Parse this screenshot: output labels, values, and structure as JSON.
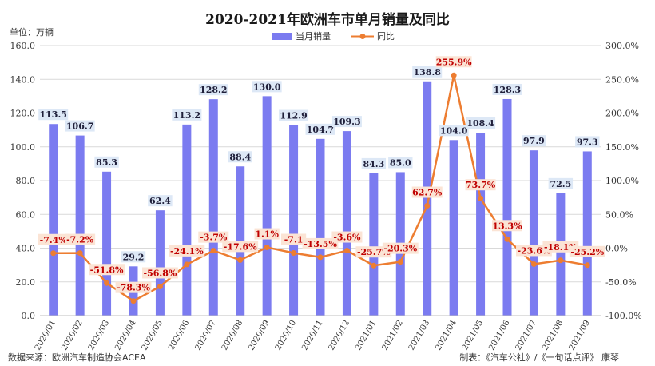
{
  "chart_data": {
    "type": "bar",
    "title": "2020-2021年欧洲车市单月销量及同比",
    "unit_label": "单位：万辆",
    "categories": [
      "2020/01",
      "2020/02",
      "2020/03",
      "2020/04",
      "2020/05",
      "2020/06",
      "2020/07",
      "2020/08",
      "2020/09",
      "2020/10",
      "2020/11",
      "2020/12",
      "2021/01",
      "2021/02",
      "2021/03",
      "2021/04",
      "2021/05",
      "2021/06",
      "2021/07",
      "2021/08",
      "2021/09"
    ],
    "series": [
      {
        "name": "当月销量",
        "type": "bar",
        "axis": "left",
        "color": "#7b7bf0",
        "values": [
          113.5,
          106.7,
          85.3,
          29.2,
          62.4,
          113.2,
          128.2,
          88.4,
          130.0,
          112.9,
          104.7,
          109.3,
          84.3,
          85.0,
          138.8,
          104.0,
          108.4,
          128.3,
          97.9,
          72.5,
          97.3
        ],
        "labels": [
          "113.5",
          "106.7",
          "85.3",
          "29.2",
          "62.4",
          "113.2",
          "128.2",
          "88.4",
          "130.0",
          "112.9",
          "104.7",
          "109.3",
          "84.3",
          "85.0",
          "138.8",
          "104.0",
          "108.4",
          "128.3",
          "97.9",
          "72.5",
          "97.3"
        ]
      },
      {
        "name": "同比",
        "type": "line",
        "axis": "right",
        "color": "#ed7d31",
        "values": [
          -7.4,
          -7.2,
          -51.8,
          -78.3,
          -56.8,
          -24.1,
          -3.7,
          -17.6,
          1.1,
          -7.1,
          -13.5,
          -3.6,
          -25.7,
          -20.3,
          62.7,
          255.9,
          73.7,
          13.3,
          -23.6,
          -18.1,
          -25.2
        ],
        "labels": [
          "-7.4%",
          "-7.2%",
          "-51.8%",
          "-78.3%",
          "-56.8%",
          "-24.1%",
          "-3.7%",
          "-17.6%",
          "1.1%",
          "-7.1",
          "-13.5%",
          "-3.6%",
          "-25.7%",
          "-20.3%",
          "62.7%",
          "255.9%",
          "73.7%",
          "13.3%",
          "-23.6%",
          "-18.1%",
          "-25.2%"
        ]
      }
    ],
    "ylim_left": [
      0,
      160
    ],
    "ylim_right": [
      -100,
      300
    ],
    "yticks_left": [
      "0.0",
      "20.0",
      "40.0",
      "60.0",
      "80.0",
      "100.0",
      "120.0",
      "140.0",
      "160.0"
    ],
    "yticks_right": [
      "-100.0%",
      "-50.0%",
      "0.0%",
      "50.0%",
      "100.0%",
      "150.0%",
      "200.0%",
      "250.0%",
      "300.0%"
    ],
    "grid": true,
    "legend_position": "top"
  },
  "footer": {
    "source": "数据来源：欧洲汽车制造协会ACEA",
    "credit": "制表：《汽车公社》/《一句话点评》 康琴"
  }
}
